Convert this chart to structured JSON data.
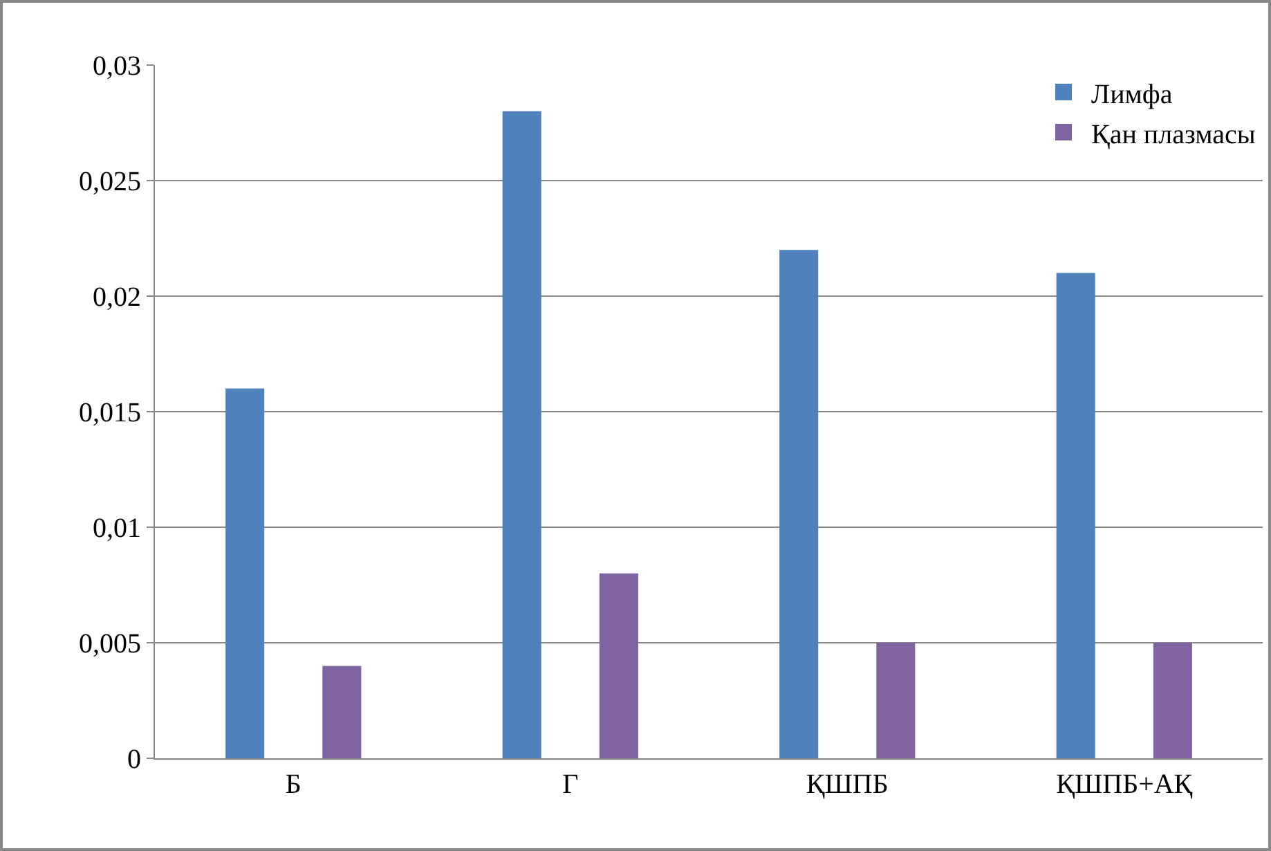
{
  "chart_data": {
    "type": "bar",
    "categories": [
      "Б",
      "Г",
      "ҚШПБ",
      "ҚШПБ+АҚ"
    ],
    "series": [
      {
        "name": "Лимфа",
        "color": "#4f81bd",
        "values": [
          0.016,
          0.028,
          0.022,
          0.021
        ]
      },
      {
        "name": "Қан плазмасы",
        "color": "#8064a2",
        "values": [
          0.004,
          0.008,
          0.005,
          0.005
        ]
      }
    ],
    "ylim": [
      0,
      0.03
    ],
    "yticks": [
      0,
      {
        "value": 0.005,
        "label": "0,005"
      },
      {
        "value": 0.01,
        "label": "0,01"
      },
      {
        "value": 0.015,
        "label": "0,015"
      },
      {
        "value": 0.02,
        "label": "0,02"
      },
      {
        "value": 0.025,
        "label": "0,025"
      },
      {
        "value": 0.03,
        "label": "0,03"
      }
    ],
    "grid": "y",
    "legend": "top right"
  }
}
